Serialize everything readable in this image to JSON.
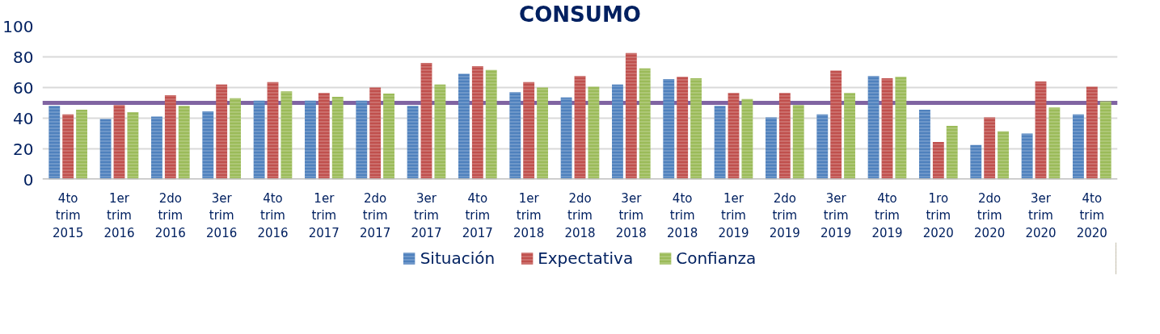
{
  "chart_data": {
    "type": "bar",
    "title": "CONSUMO",
    "categories": [
      "4to\ntrim\n2015",
      "1er\ntrim\n2016",
      "2do\ntrim\n2016",
      "3er\ntrim\n2016",
      "4to\ntrim\n2016",
      "1er\ntrim\n2017",
      "2do\ntrim\n2017",
      "3er\ntrim\n2017",
      "4to\ntrim\n2017",
      "1er\ntrim\n2018",
      "2do\ntrim\n2018",
      "3er\ntrim\n2018",
      "4to\ntrim\n2018",
      "1er\ntrim\n2019",
      "2do\ntrim\n2019",
      "3er\ntrim\n2019",
      "4to\ntrim\n2019",
      "1ro\ntrim\n2020",
      "2do\ntrim\n2020",
      "3er\ntrim\n2020",
      "4to\ntrim\n2020"
    ],
    "series": [
      {
        "name": "Situación",
        "color": "#4f81bd",
        "values": [
          48,
          39.5,
          41,
          44.5,
          51.5,
          51.5,
          51.5,
          48,
          69,
          57,
          53.5,
          62,
          65.5,
          48,
          40.5,
          42.5,
          67.5,
          45.5,
          22.5,
          30,
          42.5
        ]
      },
      {
        "name": "Expectativa",
        "color": "#c0504d",
        "values": [
          42.5,
          48.5,
          55,
          62,
          63.5,
          56.5,
          60,
          76,
          74,
          63.5,
          67.5,
          82.5,
          67,
          56.5,
          56.5,
          71,
          66,
          24.5,
          40.5,
          64,
          60.5
        ]
      },
      {
        "name": "Confianza",
        "color": "#9bbb59",
        "values": [
          45.5,
          44,
          48,
          53,
          57.5,
          54,
          56,
          62,
          71.5,
          60,
          60.5,
          72.5,
          66,
          52.5,
          48.5,
          56.5,
          67,
          35,
          31.5,
          47,
          51
        ]
      }
    ],
    "ylim": [
      0,
      100
    ],
    "yticks": [
      0,
      20,
      40,
      60,
      80,
      100
    ],
    "grid": "y",
    "legend": "bottom",
    "ref_lines": [
      {
        "axis": "y",
        "value": 50,
        "color": "#8064a2"
      }
    ]
  }
}
